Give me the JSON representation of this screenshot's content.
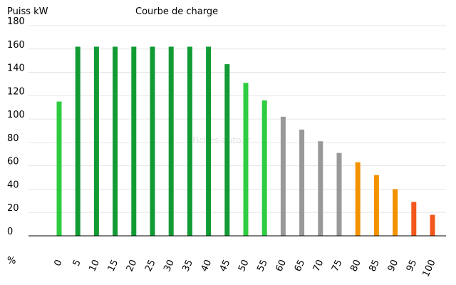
{
  "chart_data": {
    "type": "bar",
    "title": "Courbe de charge",
    "ylabel": "Puiss kW",
    "xlabel": "%",
    "watermark": "Fiches-auto.fr",
    "ylim": [
      0,
      180
    ],
    "yticks": [
      0,
      20,
      40,
      60,
      80,
      100,
      120,
      140,
      160,
      180
    ],
    "grid": true,
    "categories": [
      "0",
      "5",
      "10",
      "15",
      "20",
      "25",
      "30",
      "35",
      "40",
      "45",
      "50",
      "55",
      "60",
      "65",
      "70",
      "75",
      "80",
      "85",
      "90",
      "95",
      "100"
    ],
    "values": [
      115,
      162,
      162,
      162,
      162,
      162,
      162,
      162,
      162,
      147,
      131,
      116,
      102,
      91,
      81,
      71,
      63,
      52,
      40,
      29,
      18
    ],
    "colors": [
      "#2ecc40",
      "#129b34",
      "#129b34",
      "#129b34",
      "#129b34",
      "#129b34",
      "#129b34",
      "#129b34",
      "#129b34",
      "#129b34",
      "#2ecc40",
      "#2ecc40",
      "#999999",
      "#999999",
      "#999999",
      "#999999",
      "#f39200",
      "#f39200",
      "#f39200",
      "#f2571b",
      "#f2571b"
    ]
  }
}
